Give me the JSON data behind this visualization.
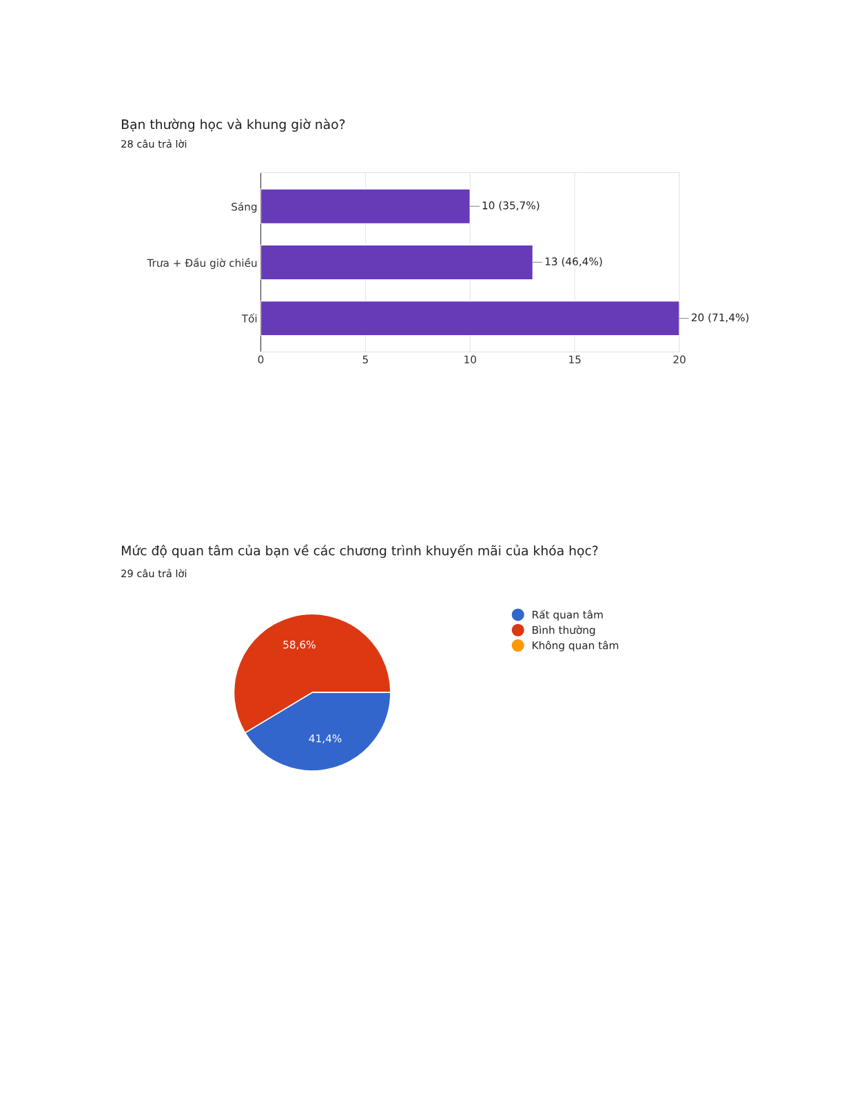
{
  "chart_data": [
    {
      "type": "bar",
      "title": "Bạn thường học và khung giờ nào?",
      "subtitle": "28 câu trả lời",
      "orientation": "horizontal",
      "categories": [
        "Sáng",
        "Trưa + Đầu giờ chiều",
        "Tối"
      ],
      "values": [
        10,
        13,
        20
      ],
      "color": "#673ab7",
      "value_labels": [
        "10 (35,7%)",
        "13 (46,4%)",
        "20 (71,4%)"
      ],
      "xlim": [
        0,
        20
      ],
      "xticks": [
        0,
        5,
        10,
        15,
        20
      ],
      "grid": "x"
    },
    {
      "type": "pie",
      "title": "Mức độ quan tâm của bạn về các chương trình khuyến mãi của khóa học?",
      "subtitle": "29 câu trả lời",
      "categories": [
        "Rất quan tâm",
        "Bình thường",
        "Không quan tâm"
      ],
      "values": [
        41.4,
        58.6,
        0
      ],
      "colors": [
        "#3366cc",
        "#dc3912",
        "#ff9900"
      ],
      "value_labels": [
        "41,4%",
        "58,6%",
        null
      ],
      "legend": "top right"
    }
  ]
}
